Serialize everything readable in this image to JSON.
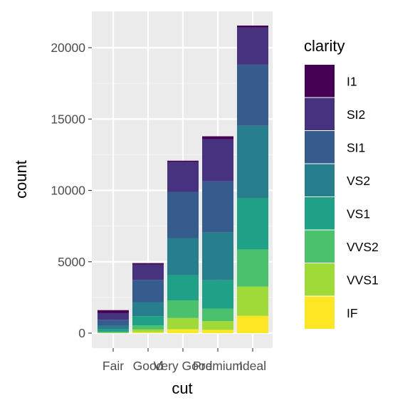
{
  "chart_data": {
    "type": "bar",
    "stacked": true,
    "categories": [
      "Fair",
      "Good",
      "Very Good",
      "Premium",
      "Ideal"
    ],
    "xlabel": "cut",
    "ylabel": "count",
    "ylim": [
      0,
      22000
    ],
    "yticks": [
      0,
      5000,
      10000,
      15000,
      20000
    ],
    "grid": true,
    "legend": {
      "title": "clarity",
      "position": "right"
    },
    "series": [
      {
        "name": "IF",
        "color": "#FDE725",
        "values": [
          9,
          71,
          268,
          230,
          1212
        ]
      },
      {
        "name": "VVS1",
        "color": "#A0DA39",
        "values": [
          17,
          186,
          789,
          616,
          2047
        ]
      },
      {
        "name": "VVS2",
        "color": "#4AC16D",
        "values": [
          69,
          286,
          1235,
          870,
          2606
        ]
      },
      {
        "name": "VS1",
        "color": "#1FA187",
        "values": [
          170,
          648,
          1775,
          1989,
          3589
        ]
      },
      {
        "name": "VS2",
        "color": "#277F8E",
        "values": [
          261,
          978,
          2591,
          3357,
          5071
        ]
      },
      {
        "name": "SI1",
        "color": "#365C8D",
        "values": [
          408,
          1560,
          3240,
          3575,
          4282
        ]
      },
      {
        "name": "SI2",
        "color": "#46327E",
        "values": [
          466,
          1081,
          2100,
          2949,
          2598
        ]
      },
      {
        "name": "I1",
        "color": "#440154",
        "values": [
          210,
          96,
          84,
          205,
          146
        ]
      }
    ]
  }
}
